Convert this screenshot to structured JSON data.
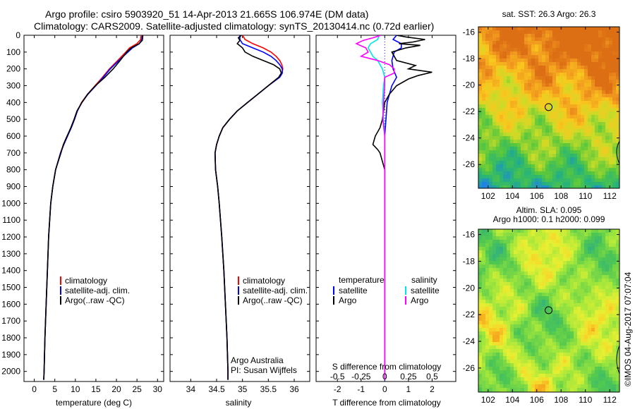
{
  "header": {
    "line1": "Argo profile: csiro 5903920_51 14-Apr-2013 21.665S 106.974E (DM data)",
    "line2": "Climatology: CARS2009. Satellite-adjusted climatology: synTS_20130414.nc (0.72d earlier)"
  },
  "colors": {
    "climatology": "#ff0000",
    "satellite": "#0000ff",
    "argo": "#000000",
    "salinity_satellite": "#00e5e5",
    "salinity_argo": "#ff00ff"
  },
  "depth_axis": {
    "ticks": [
      0,
      100,
      200,
      300,
      400,
      500,
      600,
      700,
      800,
      900,
      1000,
      1100,
      1200,
      1300,
      1400,
      1500,
      1600,
      1700,
      1800,
      1900,
      2000
    ],
    "ylim": [
      0,
      2060
    ]
  },
  "chart_data": [
    {
      "type": "line",
      "name": "temperature-profile",
      "xlabel": "temperature (deg C)",
      "xlim": [
        -2.5,
        31.5
      ],
      "xticks": [
        0,
        5,
        10,
        15,
        20,
        25,
        30
      ],
      "legend": [
        "climatology",
        "satellite-adj. clim.",
        "Argo(..raw -QC)"
      ],
      "legend_position": "lower-center",
      "series": [
        {
          "name": "climatology",
          "color": "#ff0000",
          "depth": [
            0,
            25,
            50,
            75,
            100,
            150,
            200,
            250,
            300,
            350,
            400,
            450,
            500,
            550,
            600,
            650,
            700,
            800,
            900,
            1000,
            1200,
            1400,
            1600,
            1800,
            2000,
            2050
          ],
          "values": [
            26.0,
            25.9,
            25.0,
            23.2,
            22.3,
            20.3,
            18.3,
            16.6,
            14.8,
            13.0,
            11.5,
            10.5,
            9.8,
            9.0,
            8.0,
            7.1,
            6.4,
            5.2,
            4.5,
            4.0,
            3.5,
            3.2,
            2.9,
            2.6,
            2.4,
            2.3
          ]
        },
        {
          "name": "satellite-adj. clim.",
          "color": "#0000ff",
          "depth": [
            0,
            25,
            50,
            75,
            100,
            150,
            200,
            250,
            300,
            350,
            400,
            450,
            500,
            550,
            600,
            650,
            700,
            800,
            900,
            1000,
            1200,
            1400,
            1600,
            1800,
            2000,
            2050
          ],
          "values": [
            26.3,
            26.2,
            25.6,
            23.9,
            22.8,
            20.6,
            18.5,
            16.8,
            15.0,
            13.1,
            11.6,
            10.5,
            9.8,
            9.0,
            8.1,
            7.2,
            6.4,
            5.2,
            4.5,
            4.0,
            3.5,
            3.2,
            2.9,
            2.6,
            2.4,
            2.3
          ]
        },
        {
          "name": "Argo(..raw -QC)",
          "color": "#000000",
          "depth": [
            0,
            10,
            30,
            50,
            75,
            100,
            150,
            200,
            250,
            300,
            350,
            400,
            450,
            500,
            550,
            600,
            650,
            700,
            800,
            900,
            1000,
            1200,
            1400,
            1600,
            1800,
            2000,
            2050
          ],
          "values": [
            26.4,
            26.4,
            26.3,
            25.5,
            23.6,
            22.5,
            20.9,
            19.2,
            17.2,
            14.9,
            13.0,
            11.6,
            10.4,
            9.7,
            8.9,
            8.0,
            7.1,
            6.5,
            5.2,
            4.5,
            4.0,
            3.5,
            3.2,
            2.9,
            2.6,
            2.4,
            2.3
          ]
        }
      ]
    },
    {
      "type": "line",
      "name": "salinity-profile",
      "xlabel": "salinity",
      "xlim": [
        33.6,
        36.3
      ],
      "xticks": [
        34,
        34.5,
        35,
        35.5,
        36
      ],
      "legend": [
        "climatology",
        "satellite-adj. clim.",
        "Argo(..raw -QC)"
      ],
      "legend_position": "lower-center",
      "annotation": [
        "Argo Australia",
        "PI: Susan Wijffels"
      ],
      "series": [
        {
          "name": "climatology",
          "color": "#ff0000",
          "depth": [
            0,
            25,
            50,
            75,
            100,
            125,
            150,
            175,
            200,
            225,
            250,
            300,
            350,
            400,
            450,
            500,
            550,
            600,
            650,
            700,
            800,
            900,
            1000,
            1200,
            1400,
            1600,
            1800,
            2000,
            2050
          ],
          "values": [
            35.0,
            35.05,
            35.2,
            35.4,
            35.55,
            35.65,
            35.72,
            35.76,
            35.78,
            35.76,
            35.7,
            35.5,
            35.3,
            35.1,
            34.9,
            34.75,
            34.62,
            34.55,
            34.5,
            34.47,
            34.48,
            34.52,
            34.55,
            34.6,
            34.64,
            34.67,
            34.7,
            34.72,
            34.72
          ]
        },
        {
          "name": "satellite-adj. clim.",
          "color": "#0000ff",
          "depth": [
            0,
            25,
            50,
            75,
            100,
            125,
            150,
            175,
            200,
            225,
            250,
            300,
            350,
            400,
            450,
            500,
            550,
            600,
            650,
            700,
            800,
            900,
            1000,
            1200,
            1400,
            1600,
            1800,
            2000,
            2050
          ],
          "values": [
            34.95,
            34.95,
            35.0,
            35.2,
            35.4,
            35.55,
            35.65,
            35.72,
            35.77,
            35.77,
            35.72,
            35.5,
            35.3,
            35.1,
            34.9,
            34.75,
            34.62,
            34.55,
            34.5,
            34.47,
            34.48,
            34.52,
            34.55,
            34.6,
            34.64,
            34.67,
            34.7,
            34.72,
            34.72
          ]
        },
        {
          "name": "Argo(..raw -QC)",
          "color": "#000000",
          "depth": [
            0,
            15,
            30,
            50,
            75,
            100,
            125,
            150,
            175,
            200,
            225,
            250,
            300,
            350,
            400,
            450,
            500,
            550,
            600,
            650,
            700,
            800,
            900,
            1000,
            1200,
            1400,
            1600,
            1800,
            2000,
            2050
          ],
          "values": [
            34.98,
            34.92,
            34.95,
            34.9,
            35.0,
            35.05,
            35.2,
            35.4,
            35.6,
            35.72,
            35.75,
            35.7,
            35.5,
            35.3,
            35.1,
            34.9,
            34.75,
            34.62,
            34.55,
            34.5,
            34.47,
            34.48,
            34.52,
            34.55,
            34.6,
            34.64,
            34.67,
            34.7,
            34.72,
            34.72
          ]
        }
      ]
    },
    {
      "type": "line",
      "name": "difference-profile",
      "xlabel": "T difference from climatology",
      "xlim": [
        -2.9,
        3.0
      ],
      "xticks": [
        -2,
        -1,
        0,
        1,
        2
      ],
      "top_xlabel": "S difference from climatology",
      "top_xticks": [
        -0.5,
        -0.25,
        0,
        0.25,
        0.5
      ],
      "top_xtick_labels": [
        "-0.5",
        "-0.25",
        "0",
        "0.25",
        "0.5"
      ],
      "top_xscale": 4,
      "legend_left_title": "temperature",
      "legend_right_title": "salinity",
      "legend": [
        "satellite",
        "Argo",
        "satellite",
        "Argo"
      ],
      "series": [
        {
          "name": "temperature satellite",
          "color": "#0000ff",
          "depth": [
            0,
            25,
            50,
            75,
            100,
            150,
            200,
            250,
            300,
            400,
            500,
            600,
            700,
            800,
            1000,
            1500,
            2000,
            2050
          ],
          "values": [
            0.5,
            0.35,
            0.7,
            0.7,
            0.4,
            0.3,
            0.35,
            0.5,
            0.3,
            0.1,
            0.05,
            0.0,
            0.0,
            0.0,
            0.0,
            0.0,
            0.0,
            0.0
          ]
        },
        {
          "name": "temperature Argo",
          "color": "#000000",
          "depth": [
            0,
            10,
            25,
            40,
            50,
            60,
            75,
            100,
            150,
            180,
            200,
            220,
            240,
            260,
            300,
            350,
            400,
            500,
            550,
            600,
            650,
            680,
            700,
            800,
            1000,
            1200,
            1500,
            2000,
            2050
          ],
          "values": [
            0.5,
            0.9,
            1.7,
            1.2,
            0.6,
            1.5,
            0.9,
            0.3,
            0.5,
            1.3,
            1.0,
            2.0,
            1.4,
            1.0,
            0.5,
            0.2,
            0.0,
            -0.1,
            -0.2,
            -0.4,
            -0.5,
            -0.3,
            -0.2,
            0.0,
            0.0,
            0.0,
            0.0,
            0.0,
            0.0
          ]
        },
        {
          "name": "salinity satellite",
          "color": "#00e5e5",
          "depth": [
            0,
            25,
            50,
            75,
            100,
            125,
            150,
            200,
            250,
            300,
            400,
            500,
            600,
            700,
            800,
            1000,
            1500,
            2000,
            2050
          ],
          "values": [
            -0.24,
            -0.3,
            -0.6,
            -0.7,
            -0.6,
            -0.5,
            -0.3,
            -0.1,
            0.0,
            -0.05,
            -0.1,
            -0.05,
            0.0,
            0.0,
            0.0,
            0.0,
            0.0,
            0.0,
            0.0
          ]
        },
        {
          "name": "salinity Argo",
          "color": "#ff00ff",
          "depth": [
            0,
            15,
            30,
            50,
            75,
            100,
            125,
            150,
            175,
            200,
            225,
            250,
            300,
            400,
            500,
            600,
            700,
            800,
            1000,
            1500,
            2000,
            2050
          ],
          "values": [
            -0.16,
            -0.5,
            -0.9,
            -1.2,
            -0.8,
            -0.7,
            -1.0,
            -0.3,
            0.2,
            0.4,
            0.4,
            0.0,
            0.0,
            -0.05,
            -0.08,
            0.0,
            0.0,
            0.0,
            0.0,
            0.0,
            0.0,
            0.0
          ]
        }
      ]
    },
    {
      "type": "heatmap",
      "name": "sst-map",
      "title": "sat. SST: 26.3 Argo: 26.3",
      "xlim": [
        101.2,
        112.8
      ],
      "ylim": [
        -27.8,
        -15.6
      ],
      "xticks": [
        102,
        104,
        106,
        108,
        110,
        112
      ],
      "yticks": [
        -16,
        -18,
        -20,
        -22,
        -24,
        -26
      ],
      "marker": [
        106.974,
        -21.665
      ]
    },
    {
      "type": "heatmap",
      "name": "sla-map",
      "title_line1": "Altim. SLA: 0.095",
      "title_line2": "Argo h1000: 0.1 h2000: 0.099",
      "xlim": [
        101.2,
        112.8
      ],
      "ylim": [
        -27.8,
        -15.6
      ],
      "xticks": [
        102,
        104,
        106,
        108,
        110,
        112
      ],
      "yticks": [
        -16,
        -18,
        -20,
        -22,
        -24,
        -26
      ],
      "marker": [
        106.974,
        -21.665
      ]
    }
  ],
  "credit": "©IMOS 04-Aug-2017 07:07:04"
}
